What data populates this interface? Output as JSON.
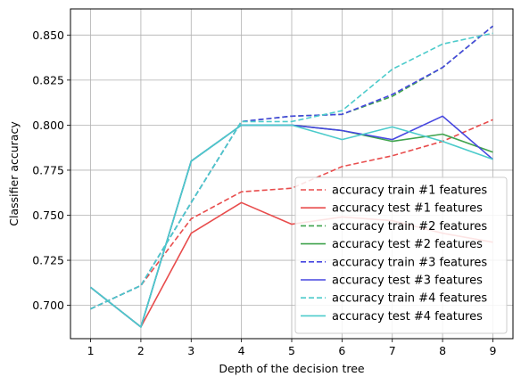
{
  "chart_data": {
    "type": "line",
    "xlabel": "Depth of the decision tree",
    "ylabel": "Classifier accuracy",
    "x": [
      1,
      2,
      3,
      4,
      5,
      6,
      7,
      8,
      9
    ],
    "xlim": [
      0.6,
      9.4
    ],
    "ylim": [
      0.6815,
      0.8645
    ],
    "xticks": [
      "1",
      "2",
      "3",
      "4",
      "5",
      "6",
      "7",
      "8",
      "9"
    ],
    "yticks": [
      0.7,
      0.725,
      0.75,
      0.775,
      0.8,
      0.825,
      0.85
    ],
    "ytick_labels": [
      "0.700",
      "0.725",
      "0.750",
      "0.775",
      "0.800",
      "0.825",
      "0.850"
    ],
    "grid": true,
    "legend_position": "lower-right",
    "series": [
      {
        "name": "accuracy train #1 features",
        "style": "dashed",
        "color": "#e84c4c",
        "values": [
          0.698,
          0.711,
          0.748,
          0.763,
          0.765,
          0.777,
          0.783,
          0.791,
          0.803
        ]
      },
      {
        "name": "accuracy test #1 features",
        "style": "solid",
        "color": "#e84c4c",
        "values": [
          0.71,
          0.688,
          0.74,
          0.757,
          0.745,
          0.749,
          0.747,
          0.74,
          0.735
        ]
      },
      {
        "name": "accuracy train #2 features",
        "style": "dashed",
        "color": "#3fa34d",
        "values": [
          0.698,
          0.711,
          0.757,
          0.802,
          0.805,
          0.806,
          0.816,
          0.832,
          0.855
        ]
      },
      {
        "name": "accuracy test #2 features",
        "style": "solid",
        "color": "#3fa34d",
        "values": [
          0.71,
          0.688,
          0.78,
          0.8,
          0.8,
          0.797,
          0.791,
          0.795,
          0.785
        ]
      },
      {
        "name": "accuracy train #3 features",
        "style": "dashed",
        "color": "#4646e0",
        "values": [
          0.698,
          0.711,
          0.757,
          0.802,
          0.805,
          0.806,
          0.817,
          0.832,
          0.855
        ]
      },
      {
        "name": "accuracy test #3 features",
        "style": "solid",
        "color": "#4646e0",
        "values": [
          0.71,
          0.688,
          0.78,
          0.8,
          0.8,
          0.797,
          0.792,
          0.805,
          0.781
        ]
      },
      {
        "name": "accuracy train #4 features",
        "style": "dashed",
        "color": "#4ccbcb",
        "values": [
          0.698,
          0.711,
          0.757,
          0.802,
          0.802,
          0.808,
          0.831,
          0.845,
          0.851
        ]
      },
      {
        "name": "accuracy test #4 features",
        "style": "solid",
        "color": "#4ccbcb",
        "values": [
          0.71,
          0.688,
          0.78,
          0.8,
          0.8,
          0.792,
          0.799,
          0.791,
          0.781
        ]
      }
    ]
  }
}
